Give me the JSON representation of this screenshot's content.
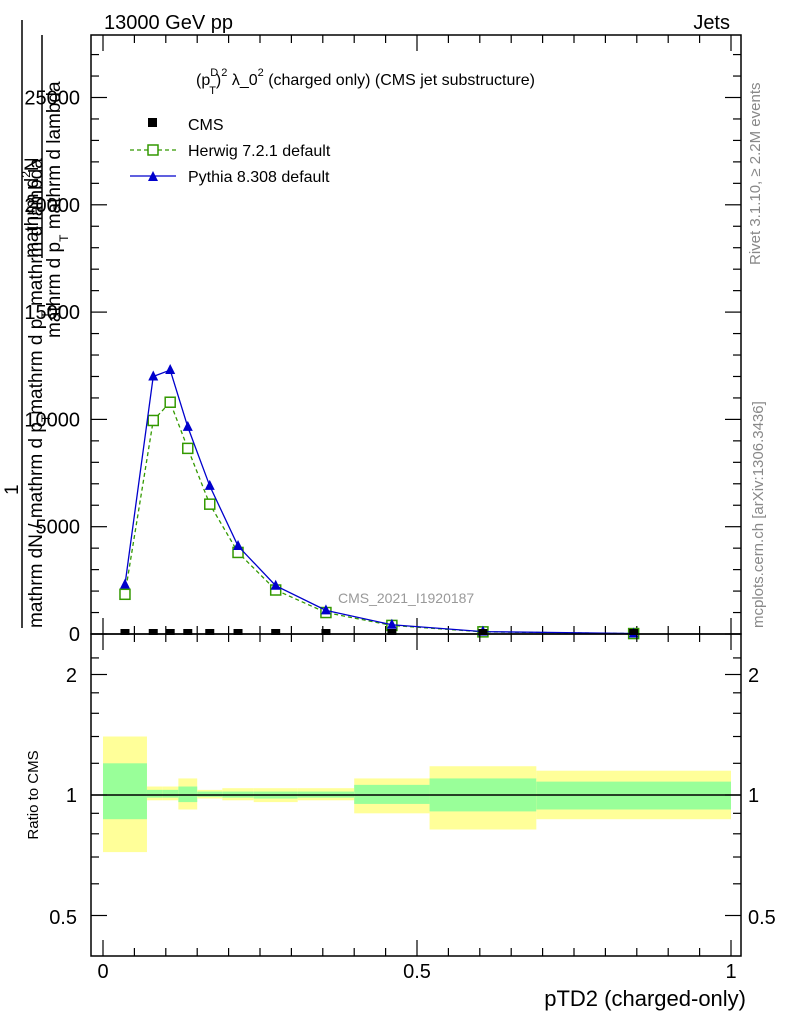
{
  "header": {
    "energy": "13000 GeV pp",
    "category": "Jets"
  },
  "side_labels": {
    "rivet": "Rivet 3.1.10, ≥ 2.2M events",
    "mcplots": "mcplots.cern.ch [arXiv:1306.3436]"
  },
  "main_plot": {
    "title_parts": {
      "p": "(p",
      "sup_D": "D",
      "sub_T": "T",
      "sup_2": "2",
      "rest": " λ_0",
      "sup_2b": "2",
      "tail": " (charged only) (CMS jet substructure)"
    },
    "ylabel_lines": [
      "mathrm d",
      "2",
      "N",
      "mathrm d p",
      "T",
      " mathrm d lambda",
      "1",
      "mathrm dN / mathrm d p",
      "T",
      "mathrm d p",
      "T",
      " mathrm d lambda"
    ],
    "watermark": "CMS_2021_I1920187",
    "y_ticks": [
      "0",
      "5000",
      "10000",
      "15000",
      "20000",
      "25000"
    ],
    "legend": {
      "cms": "CMS",
      "herwig": "Herwig 7.2.1 default",
      "pythia": "Pythia 8.308 default"
    }
  },
  "ratio_plot": {
    "ylabel": "Ratio to CMS",
    "y_ticks": [
      "0.5",
      "1",
      "2"
    ]
  },
  "x_axis": {
    "label": "pTD2 (charged-only)",
    "ticks": [
      "0",
      "0.5",
      "1"
    ]
  },
  "colors": {
    "herwig": "#339900",
    "pythia": "#0000cc",
    "band_yellow": "#ffff99",
    "band_green": "#99ff99"
  },
  "chart_data": [
    {
      "type": "line",
      "title": "(p_T^D)^2 λ_0^2 (charged only) (CMS jet substructure)",
      "xlabel": "pTD2 (charged-only)",
      "ylabel": "1/N dN/dp_T dλ",
      "xlim": [
        0,
        1
      ],
      "ylim": [
        0,
        28000
      ],
      "series": [
        {
          "name": "CMS",
          "marker": "square",
          "x": [
            0.035,
            0.08,
            0.107,
            0.135,
            0.17,
            0.215,
            0.275,
            0.355,
            0.46,
            0.605,
            0.845
          ],
          "values": [
            0,
            0,
            0,
            0,
            0,
            0,
            0,
            0,
            0,
            0,
            0
          ]
        },
        {
          "name": "Herwig 7.2.1 default",
          "marker": "open-square",
          "x": [
            0.035,
            0.08,
            0.107,
            0.135,
            0.17,
            0.215,
            0.275,
            0.355,
            0.46,
            0.605,
            0.845
          ],
          "values": [
            1850,
            9950,
            10800,
            8650,
            6050,
            3800,
            2050,
            1000,
            400,
            100,
            20
          ]
        },
        {
          "name": "Pythia 8.308 default",
          "marker": "triangle",
          "x": [
            0.035,
            0.08,
            0.107,
            0.135,
            0.17,
            0.215,
            0.275,
            0.355,
            0.46,
            0.605,
            0.845
          ],
          "values": [
            2300,
            12000,
            12300,
            9650,
            6900,
            4100,
            2250,
            1100,
            430,
            110,
            25
          ]
        }
      ]
    },
    {
      "type": "area",
      "title": "Ratio to CMS",
      "ylabel": "Ratio to CMS",
      "ylim": [
        0.4,
        2.3
      ],
      "bins": [
        {
          "x0": 0.0,
          "x1": 0.07,
          "yellow": [
            0.72,
            1.4
          ],
          "green": [
            0.87,
            1.2
          ]
        },
        {
          "x0": 0.07,
          "x1": 0.095,
          "yellow": [
            0.97,
            1.05
          ],
          "green": [
            0.985,
            1.03
          ]
        },
        {
          "x0": 0.095,
          "x1": 0.12,
          "yellow": [
            0.97,
            1.05
          ],
          "green": [
            0.985,
            1.03
          ]
        },
        {
          "x0": 0.12,
          "x1": 0.15,
          "yellow": [
            0.92,
            1.1
          ],
          "green": [
            0.96,
            1.05
          ]
        },
        {
          "x0": 0.15,
          "x1": 0.19,
          "yellow": [
            0.98,
            1.03
          ],
          "green": [
            0.99,
            1.02
          ]
        },
        {
          "x0": 0.19,
          "x1": 0.24,
          "yellow": [
            0.97,
            1.04
          ],
          "green": [
            0.985,
            1.02
          ]
        },
        {
          "x0": 0.24,
          "x1": 0.31,
          "yellow": [
            0.96,
            1.04
          ],
          "green": [
            0.98,
            1.02
          ]
        },
        {
          "x0": 0.31,
          "x1": 0.4,
          "yellow": [
            0.97,
            1.04
          ],
          "green": [
            0.985,
            1.02
          ]
        },
        {
          "x0": 0.4,
          "x1": 0.52,
          "yellow": [
            0.9,
            1.1
          ],
          "green": [
            0.95,
            1.06
          ]
        },
        {
          "x0": 0.52,
          "x1": 0.69,
          "yellow": [
            0.82,
            1.18
          ],
          "green": [
            0.91,
            1.1
          ]
        },
        {
          "x0": 0.69,
          "x1": 1.0,
          "yellow": [
            0.87,
            1.15
          ],
          "green": [
            0.92,
            1.08
          ]
        }
      ]
    }
  ]
}
